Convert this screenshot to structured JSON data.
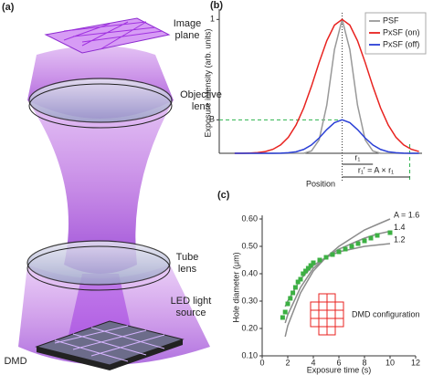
{
  "figure": {
    "panel_a": {
      "label": "(a)",
      "labels": [
        "Image plane",
        "Objective lens",
        "Tube lens",
        "LED light source",
        "DMD"
      ]
    }
  },
  "chart_data": [
    {
      "type": "line",
      "panel_label": "(b)",
      "y_label": "Exposure intensity (arb. units)",
      "x_label": "Position",
      "x": [
        -3.5,
        -3.25,
        -3,
        -2.75,
        -2.5,
        -2.25,
        -2,
        -1.75,
        -1.5,
        -1.25,
        -1,
        -0.75,
        -0.5,
        -0.25,
        0,
        0.25,
        0.5,
        0.75,
        1,
        1.25,
        1.5,
        1.75,
        2,
        2.25,
        2.5
      ],
      "xlim": [
        -4,
        2.6
      ],
      "ylim": [
        0,
        1.05
      ],
      "yticks": [
        {
          "value": 0.25,
          "label": "B"
        },
        1
      ],
      "legend": "upper right",
      "series": [
        {
          "name": "PSF",
          "color": "#999999",
          "values": [
            0,
            0,
            0,
            0,
            0,
            0,
            0,
            0,
            0,
            0,
            0.017,
            0.1,
            0.36,
            0.775,
            1,
            0.775,
            0.36,
            0.1,
            0.017,
            0,
            0,
            0,
            0,
            0,
            0
          ]
        },
        {
          "name": "PxSF (on)",
          "color": "#e8221f",
          "values": [
            0,
            0,
            0.002,
            0.005,
            0.013,
            0.03,
            0.063,
            0.12,
            0.211,
            0.339,
            0.5,
            0.678,
            0.841,
            0.958,
            1,
            0.958,
            0.841,
            0.678,
            0.5,
            0.339,
            0.211,
            0.12,
            0.063,
            0.03,
            0.013
          ]
        },
        {
          "name": "PxSF (off)",
          "color": "#2a3fd6",
          "values": [
            0,
            0,
            0,
            0,
            0,
            0,
            0.001,
            0.004,
            0.011,
            0.029,
            0.062,
            0.114,
            0.177,
            0.229,
            0.25,
            0.229,
            0.177,
            0.114,
            0.062,
            0.029,
            0.011,
            0.004,
            0.001,
            0,
            0
          ]
        }
      ],
      "annotations": [
        "r₁",
        "r₁′ = A × r₁"
      ]
    },
    {
      "type": "scatter",
      "panel_label": "(c)",
      "y_label": "Hole diameter (μm)",
      "x_label": "Exposure time (s)",
      "xlim": [
        0,
        12
      ],
      "ylim": [
        0.1,
        0.6
      ],
      "xticks": [
        0,
        2,
        4,
        6,
        8,
        10,
        12
      ],
      "yticks": [
        {
          "value": 0.1,
          "label": "0.10"
        },
        {
          "value": 0.2,
          "label": "0.20"
        },
        {
          "value": 0.3,
          "label": "0.30"
        },
        {
          "value": 0.4,
          "label": "0.40"
        },
        {
          "value": 0.5,
          "label": "0.50"
        },
        {
          "value": 0.6,
          "label": "0.60"
        }
      ],
      "series": [
        {
          "name": "A = 1.6",
          "color": "#8c8c8c",
          "mode": "line",
          "x": [
            1.8,
            2,
            3,
            4,
            5,
            6,
            7,
            8,
            9,
            10
          ],
          "values": [
            0.17,
            0.21,
            0.33,
            0.41,
            0.46,
            0.5,
            0.53,
            0.56,
            0.58,
            0.6
          ]
        },
        {
          "name": "1.4",
          "color": "#8c8c8c",
          "mode": "line",
          "x": [
            1.8,
            2,
            3,
            4,
            5,
            6,
            7,
            8,
            9,
            10
          ],
          "values": [
            0.22,
            0.25,
            0.35,
            0.42,
            0.46,
            0.49,
            0.51,
            0.53,
            0.545,
            0.555
          ]
        },
        {
          "name": "1.2",
          "color": "#8c8c8c",
          "mode": "line",
          "x": [
            1.8,
            2,
            3,
            4,
            5,
            6,
            7,
            8,
            9,
            10
          ],
          "values": [
            0.28,
            0.3,
            0.38,
            0.43,
            0.46,
            0.48,
            0.49,
            0.5,
            0.505,
            0.51
          ]
        },
        {
          "color": "#3cb043",
          "mode": "markers",
          "x": [
            1.6,
            1.8,
            2,
            2.2,
            2.4,
            2.6,
            2.8,
            3,
            3.2,
            3.4,
            3.6,
            3.8,
            4,
            4.5,
            5,
            5.5,
            6,
            6.5,
            7,
            7.5,
            8,
            8.5,
            9,
            10
          ],
          "values": [
            0.24,
            0.26,
            0.29,
            0.31,
            0.33,
            0.35,
            0.37,
            0.38,
            0.4,
            0.41,
            0.42,
            0.43,
            0.44,
            0.45,
            0.46,
            0.47,
            0.48,
            0.49,
            0.5,
            0.51,
            0.52,
            0.53,
            0.54,
            0.55
          ]
        }
      ],
      "annotations": [
        "DMD configuration"
      ]
    }
  ]
}
